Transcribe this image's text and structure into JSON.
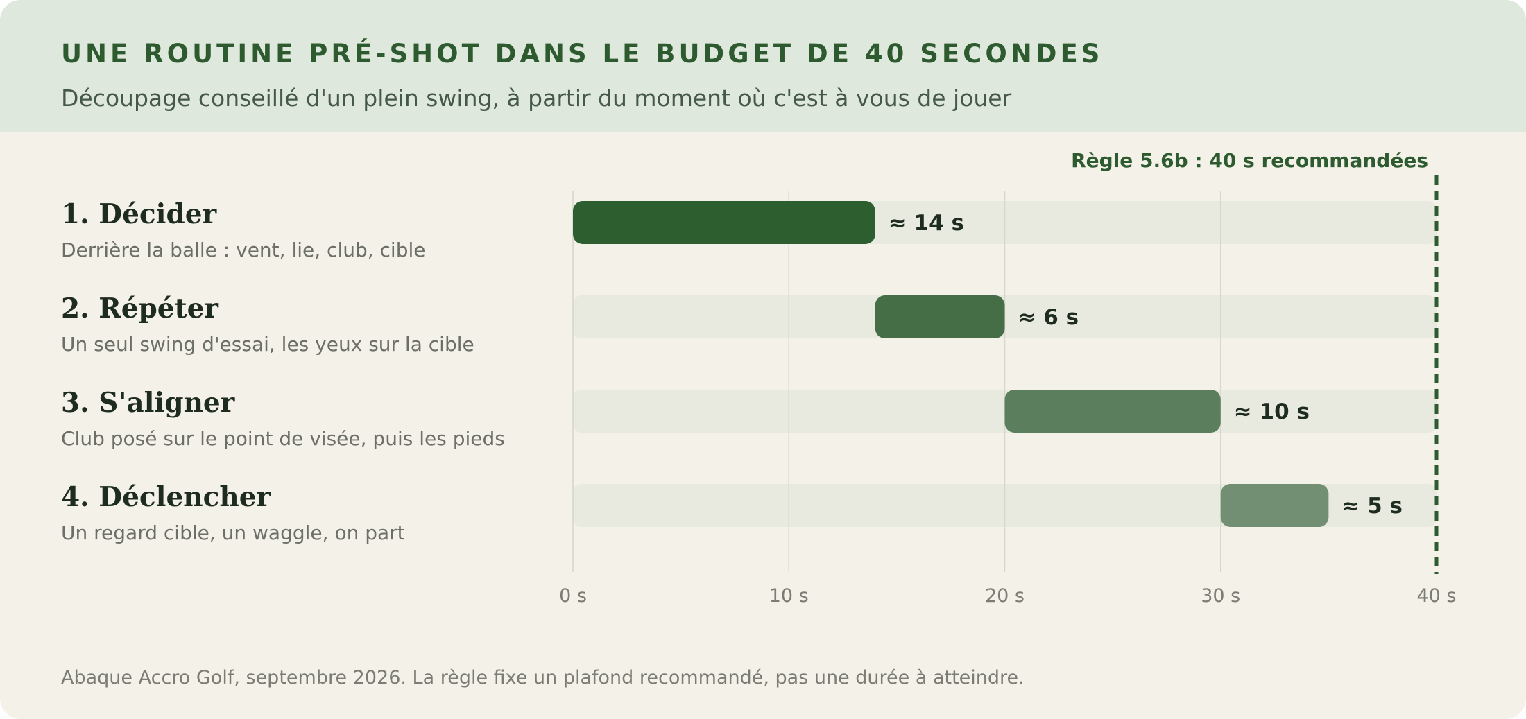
{
  "title": "UNE ROUTINE PRÉ-SHOT DANS LE BUDGET DE 40 SECONDES",
  "subtitle": "Découpage conseillé d'un plein swing, à partir du moment où c'est à vous de jouer",
  "footnote": "Abaque Accro Golf, septembre 2026. La règle fixe un plafond recommandé, pas une durée à atteindre.",
  "colors": {
    "background": "#f3f1e8",
    "header": "#dfe8dc",
    "accent": "#2d5a2f",
    "track": "#e9eadf"
  },
  "chart_data": {
    "type": "bar",
    "orientation": "horizontal",
    "stacked_timeline": true,
    "x_axis": {
      "min": 0,
      "max": 40,
      "ticks": [
        0,
        10,
        20,
        30,
        40
      ],
      "tick_labels": [
        "0 s",
        "10 s",
        "20 s",
        "30 s",
        "40 s"
      ]
    },
    "tasks": [
      {
        "name": "1. Décider",
        "description": "Derrière la balle : vent, lie, club, cible",
        "start": 0,
        "duration": 14,
        "label": "≈ 14 s",
        "color": "#2d5e30"
      },
      {
        "name": "2. Répéter",
        "description": "Un seul swing d'essai, les yeux sur la cible",
        "start": 14,
        "duration": 6,
        "label": "≈ 6 s",
        "color": "#456e47"
      },
      {
        "name": "3. S'aligner",
        "description": "Club posé sur le point de visée, puis les pieds",
        "start": 20,
        "duration": 10,
        "label": "≈ 10 s",
        "color": "#5b7f5d"
      },
      {
        "name": "4. Déclencher",
        "description": "Un regard cible, un waggle, on part",
        "start": 30,
        "duration": 5,
        "label": "≈ 5 s",
        "color": "#728f73"
      }
    ],
    "limit": {
      "value": 40,
      "label": "Règle 5.6b : 40 s recommandées"
    },
    "grid": true
  }
}
